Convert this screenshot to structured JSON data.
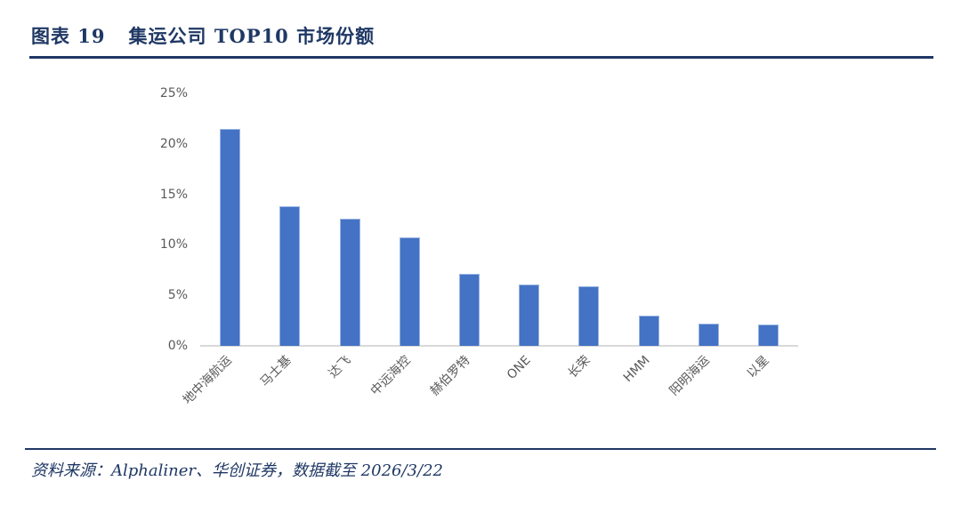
{
  "header": {
    "tag": "图表 19",
    "title": "集运公司 TOP10 市场份额"
  },
  "footer": {
    "source": "资料来源：Alphaliner、华创证券，数据截至 2026/3/22"
  },
  "colors": {
    "accent_navy": "#1F3864",
    "bar_fill": "#4472C4",
    "bar_border": "#9AB5E2",
    "axis_line": "#D9D9D9",
    "tick_text": "#595959"
  },
  "chart_data": {
    "type": "bar",
    "title": "集运公司 TOP10 市场份额",
    "categories": [
      "地中海航运",
      "马士基",
      "达飞",
      "中远海控",
      "赫伯罗特",
      "ONE",
      "长荣",
      "HMM",
      "阳明海运",
      "以星"
    ],
    "values": [
      21.5,
      13.8,
      12.6,
      10.7,
      7.1,
      6.1,
      5.9,
      3.0,
      2.2,
      2.1
    ],
    "unit": "%",
    "xlabel": "",
    "ylabel": "",
    "ylim": [
      0,
      25
    ],
    "y_ticks": [
      "25%",
      "20%",
      "15%",
      "10%",
      "5%",
      "0%"
    ],
    "grid": false,
    "legend": "none",
    "bar_color": "#4472C4"
  }
}
